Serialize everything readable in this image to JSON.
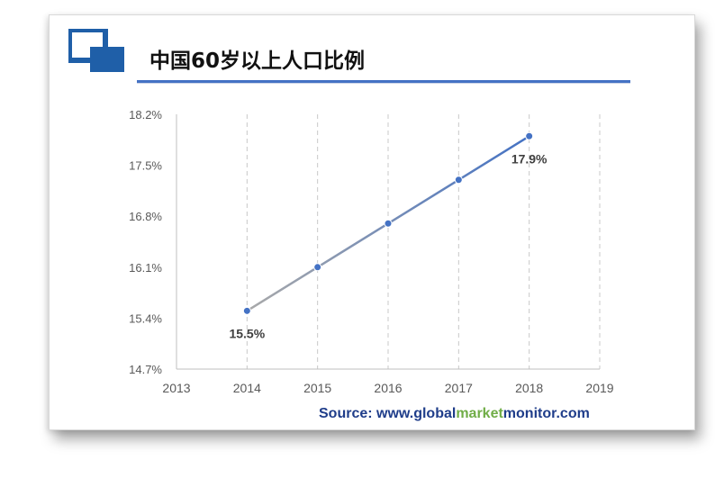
{
  "header": {
    "title": "中国60岁以上人口比例"
  },
  "source": {
    "prefix": "Source: www.",
    "p1": "global",
    "p2": "market",
    "p3": "monitor",
    "suffix": ".com"
  },
  "colors": {
    "line_start": "#a9a9a9",
    "line_end": "#4472c4",
    "marker": "#4472c4",
    "accent": "#1f5fa8",
    "source_green": "#70ad47"
  },
  "chart_data": {
    "type": "line",
    "x": [
      2014,
      2015,
      2016,
      2017,
      2018
    ],
    "values": [
      15.5,
      16.1,
      16.7,
      17.3,
      17.9
    ],
    "xticks": [
      "2013",
      "2014",
      "2015",
      "2016",
      "2017",
      "2018",
      "2019"
    ],
    "yticks": [
      "14.7%",
      "15.4%",
      "16.1%",
      "16.8%",
      "17.5%",
      "18.2%"
    ],
    "data_labels": [
      {
        "x": 2014,
        "text": "15.5%"
      },
      {
        "x": 2018,
        "text": "17.9%"
      }
    ],
    "xlim": [
      2013,
      2019
    ],
    "ylim": [
      14.7,
      18.2
    ],
    "grid": "vertical dashed",
    "title": "中国60岁以上人口比例"
  }
}
